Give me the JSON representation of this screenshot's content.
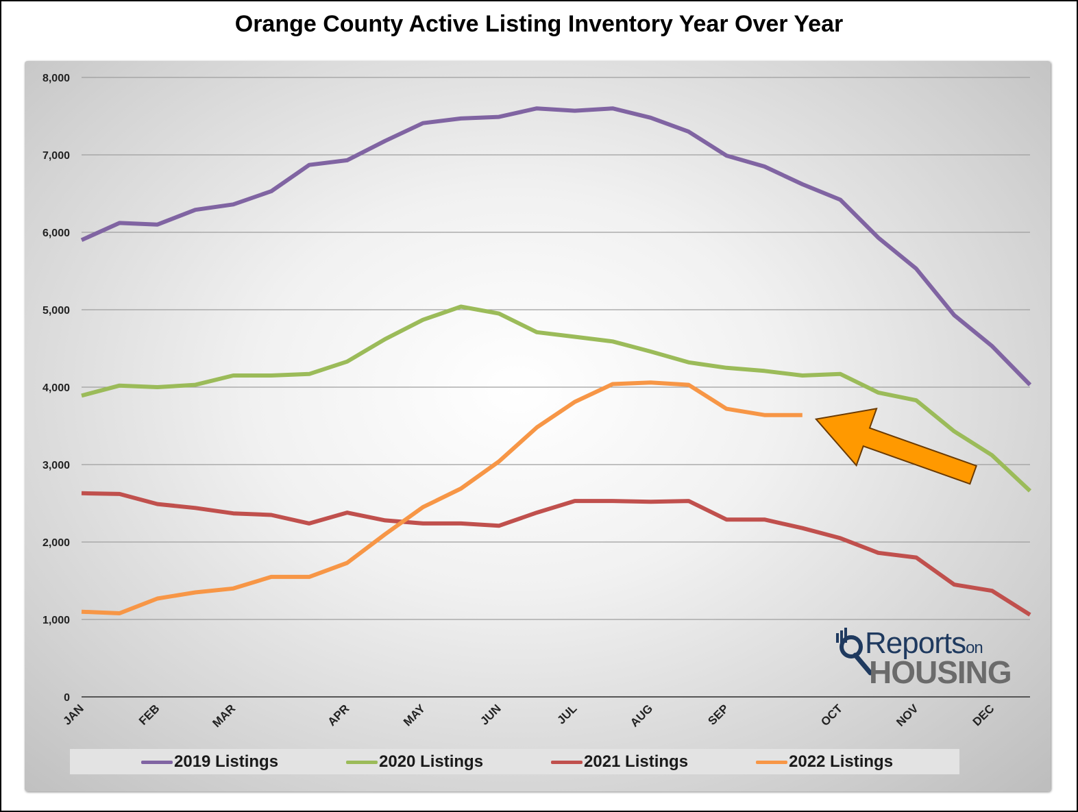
{
  "chart_data": {
    "type": "line",
    "title": "Orange County Active Listing Inventory Year Over Year",
    "xlabel": "",
    "ylabel": "",
    "ylim": [
      0,
      8000
    ],
    "yticks": [
      0,
      1000,
      2000,
      3000,
      4000,
      5000,
      6000,
      7000,
      8000
    ],
    "ytick_labels": [
      "0",
      "1,000",
      "2,000",
      "3,000",
      "4,000",
      "5,000",
      "6,000",
      "7,000",
      "8,000"
    ],
    "x_count": 26,
    "month_labels": [
      {
        "label": "JAN",
        "index": 0
      },
      {
        "label": "FEB",
        "index": 2
      },
      {
        "label": "MAR",
        "index": 4
      },
      {
        "label": "APR",
        "index": 7
      },
      {
        "label": "MAY",
        "index": 9
      },
      {
        "label": "JUN",
        "index": 11
      },
      {
        "label": "JUL",
        "index": 13
      },
      {
        "label": "AUG",
        "index": 15
      },
      {
        "label": "SEP",
        "index": 17
      },
      {
        "label": "OCT",
        "index": 20
      },
      {
        "label": "NOV",
        "index": 22
      },
      {
        "label": "DEC",
        "index": 24
      }
    ],
    "grid": true,
    "legend_position": "bottom",
    "series": [
      {
        "name": "2019 Listings",
        "color": "#8064a2",
        "values": [
          5900,
          6120,
          6100,
          6290,
          6360,
          6530,
          6870,
          6930,
          7180,
          7410,
          7470,
          7490,
          7600,
          7570,
          7600,
          7480,
          7300,
          6990,
          6850,
          6620,
          6420,
          5930,
          5530,
          4930,
          4530,
          4030
        ]
      },
      {
        "name": "2020 Listings",
        "color": "#9bbb59",
        "values": [
          3890,
          4020,
          4000,
          4030,
          4150,
          4150,
          4170,
          4330,
          4620,
          4870,
          5040,
          4950,
          4710,
          4650,
          4590,
          4460,
          4320,
          4250,
          4210,
          4150,
          4170,
          3930,
          3830,
          3430,
          3120,
          2660
        ]
      },
      {
        "name": "2021 Listings",
        "color": "#c0504d",
        "values": [
          2630,
          2620,
          2490,
          2440,
          2370,
          2350,
          2240,
          2380,
          2280,
          2240,
          2240,
          2210,
          2380,
          2530,
          2530,
          2520,
          2530,
          2290,
          2290,
          2180,
          2050,
          1860,
          1800,
          1450,
          1370,
          1060
        ]
      },
      {
        "name": "2022 Listings",
        "color": "#f79646",
        "values": [
          1100,
          1080,
          1270,
          1350,
          1400,
          1550,
          1550,
          1730,
          2100,
          2450,
          2690,
          3040,
          3480,
          3810,
          4040,
          4060,
          4030,
          3720,
          3640,
          3640
        ]
      }
    ],
    "annotation": "arrow pointing to latest 2022 value",
    "annotation_color": "#ff9900"
  },
  "logo": {
    "line1": "Reports",
    "line1_small": "on",
    "line2": "HOUSING"
  }
}
